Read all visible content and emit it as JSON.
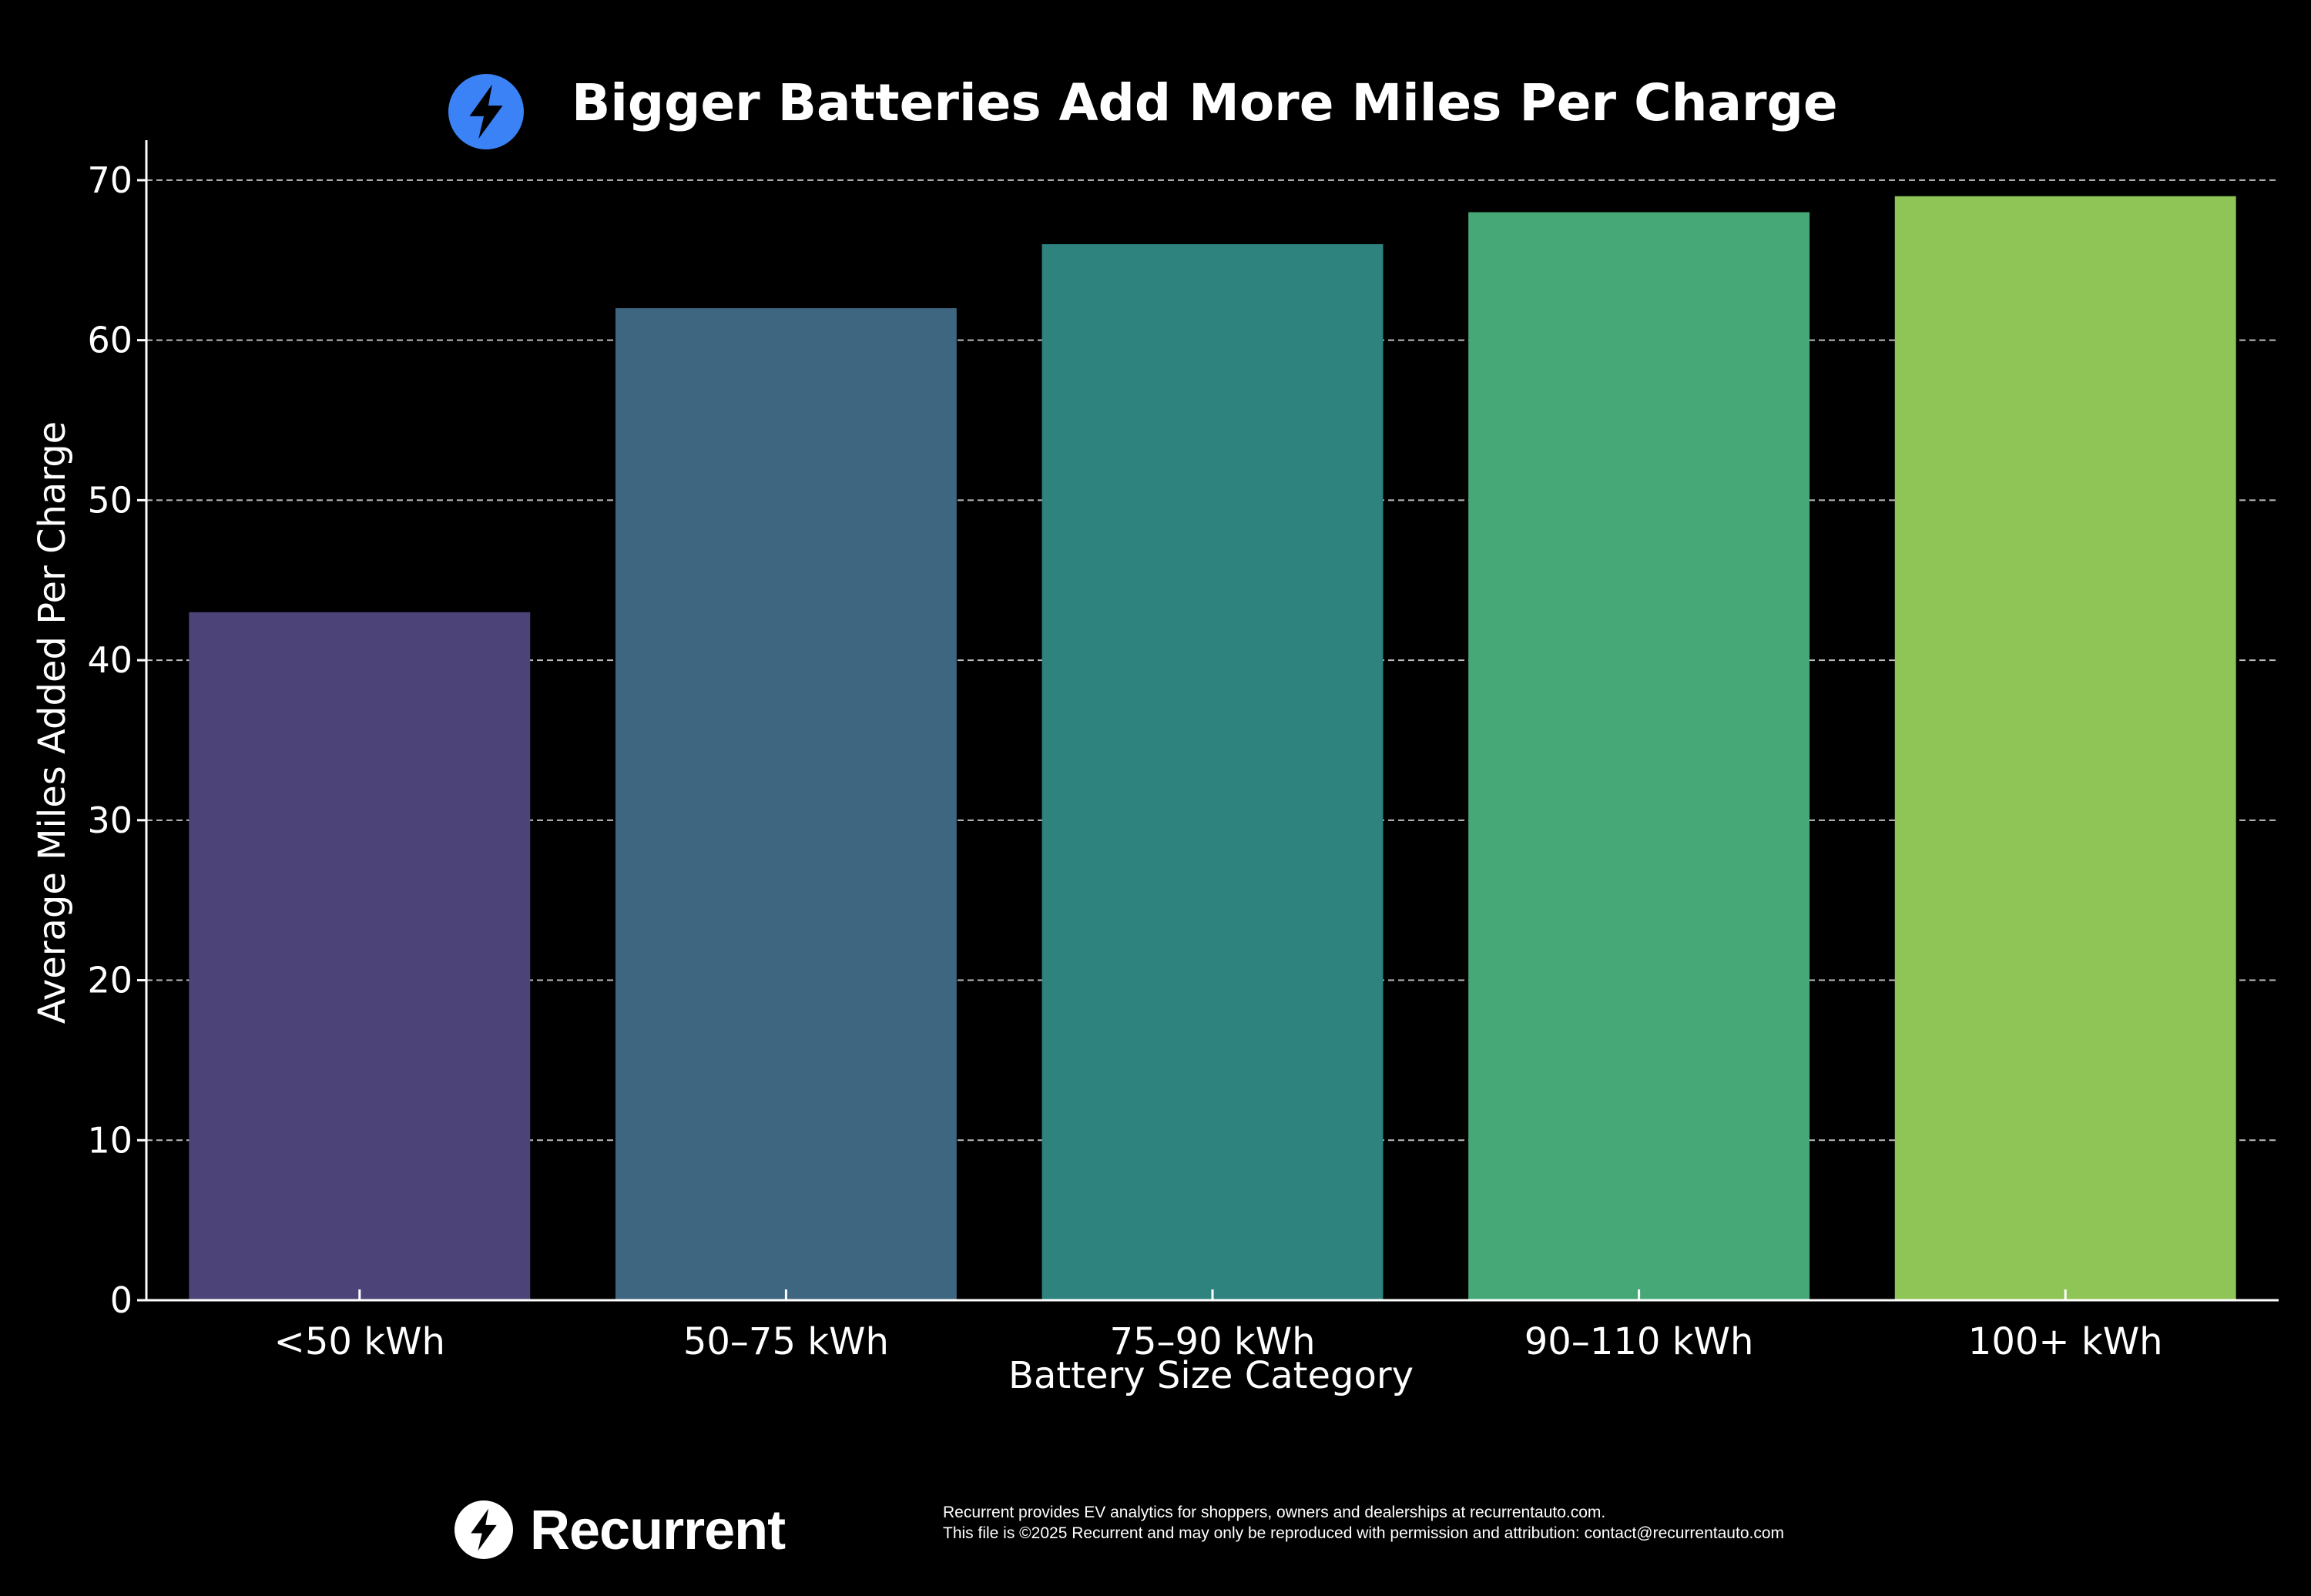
{
  "chart_data": {
    "type": "bar",
    "title": "Bigger Batteries Add More Miles Per Charge",
    "xlabel": "Battery Size Category",
    "ylabel": "Average Miles Added Per Charge",
    "categories": [
      "<50 kWh",
      "50–75 kWh",
      "75–90 kWh",
      "90–110 kWh",
      "100+ kWh"
    ],
    "values": [
      43,
      62,
      66,
      68,
      69
    ],
    "colors": [
      "#4c4479",
      "#3e6681",
      "#2f837e",
      "#47a877",
      "#8fc457"
    ],
    "ylim": [
      0,
      72.5
    ],
    "yticks": [
      0,
      10,
      20,
      30,
      40,
      50,
      60,
      70
    ],
    "grid": "y-dashed",
    "legend": "none"
  },
  "header": {
    "icon": "lightning-bolt-icon",
    "icon_color": "#3b82f6"
  },
  "footer": {
    "brand": "Recurrent",
    "logo_icon": "lightning-bolt-icon",
    "line1": "Recurrent provides EV analytics for shoppers, owners and dealerships at recurrentauto.com.",
    "line2": "This file is ©2025 Recurrent and may only be reproduced with permission and attribution: contact@recurrentauto.com"
  }
}
